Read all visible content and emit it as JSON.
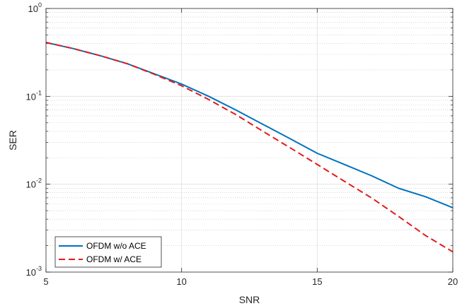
{
  "chart_data": {
    "type": "line",
    "title": "",
    "xlabel": "SNR",
    "ylabel": "SER",
    "xlim": [
      5,
      20
    ],
    "ylim": [
      0.001,
      1
    ],
    "yscale": "log",
    "grid": true,
    "minor_grid": true,
    "legend_position": "bottom-left",
    "x_ticks": [
      "5",
      "10",
      "15",
      "20"
    ],
    "y_ticks": [
      {
        "base": "10",
        "exp": "-3"
      },
      {
        "base": "10",
        "exp": "-2"
      },
      {
        "base": "10",
        "exp": "-1"
      },
      {
        "base": "10",
        "exp": "0"
      }
    ],
    "x": [
      5,
      6,
      7,
      8,
      9,
      10,
      11,
      12,
      13,
      14,
      15,
      16,
      17,
      18,
      19,
      20
    ],
    "series": [
      {
        "name": "OFDM w/o ACE",
        "color": "#0072BD",
        "style": "solid",
        "values": [
          0.41,
          0.35,
          0.29,
          0.235,
          0.18,
          0.138,
          0.1,
          0.07,
          0.048,
          0.033,
          0.0225,
          0.0168,
          0.0125,
          0.009,
          0.0072,
          0.0054
        ]
      },
      {
        "name": "OFDM w/ ACE",
        "color": "#E31A1C",
        "style": "dashed",
        "values": [
          0.41,
          0.35,
          0.29,
          0.235,
          0.178,
          0.132,
          0.092,
          0.062,
          0.04,
          0.026,
          0.0168,
          0.0108,
          0.007,
          0.0043,
          0.0026,
          0.0017
        ]
      }
    ]
  }
}
